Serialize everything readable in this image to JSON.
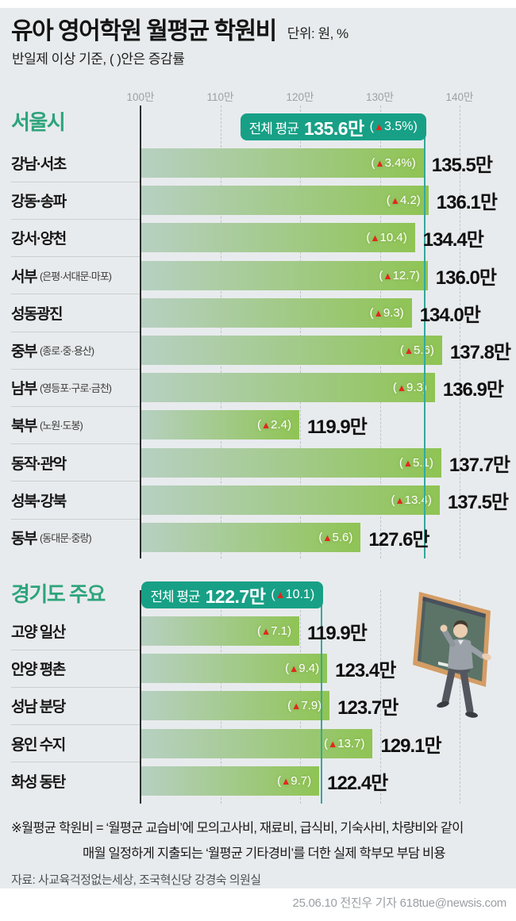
{
  "header": {
    "title": "유아 영어학원 월평균 학원비",
    "unit": "단위:  원, %",
    "subtitle": "반일제 이상 기준, ( )안은 증감률"
  },
  "axis": {
    "tick_labels": [
      "100만",
      "110만",
      "120만",
      "130만",
      "140만"
    ],
    "tick_values": [
      100,
      110,
      120,
      130,
      140
    ]
  },
  "colors": {
    "background": "#e8ebed",
    "header_green": "#2ea47c",
    "badge_teal": "#17a086",
    "avg_line_teal": "#33a89d",
    "bar_left": "#b7d0c2",
    "bar_right": "#8fc454",
    "triangle_red": "#e3261d"
  },
  "sections": [
    {
      "name": "서울시",
      "average": 135.6,
      "average_badge": {
        "label": "전체 평균",
        "value": "135.6만",
        "pct": "(▲3.5%)"
      },
      "rows": [
        {
          "label": "강남·서초",
          "sub": "",
          "pct": "(▲3.4%)",
          "value_label": "135.5만",
          "value": 135.5
        },
        {
          "label": "강동·송파",
          "sub": "",
          "pct": "(▲4.2)",
          "value_label": "136.1만",
          "value": 136.1
        },
        {
          "label": "강서·양천",
          "sub": "",
          "pct": "(▲10.4)",
          "value_label": "134.4만",
          "value": 134.4
        },
        {
          "label": "서부",
          "sub": "(은평·서대문·마포)",
          "pct": "(▲12.7)",
          "value_label": "136.0만",
          "value": 136.0
        },
        {
          "label": "성동광진",
          "sub": "",
          "pct": "(▲9.3)",
          "value_label": "134.0만",
          "value": 134.0
        },
        {
          "label": "중부",
          "sub": "(종로·중·용산)",
          "pct": "(▲5.6)",
          "value_label": "137.8만",
          "value": 137.8
        },
        {
          "label": "남부",
          "sub": "(영등포·구로·금천)",
          "pct": "(▲9.3)",
          "value_label": "136.9만",
          "value": 136.9
        },
        {
          "label": "북부",
          "sub": "(노원·도봉)",
          "pct": "(▲2.4)",
          "value_label": "119.9만",
          "value": 119.9
        },
        {
          "label": "동작·관악",
          "sub": "",
          "pct": "(▲5.1)",
          "value_label": "137.7만",
          "value": 137.7
        },
        {
          "label": "성북·강북",
          "sub": "",
          "pct": "(▲13.4)",
          "value_label": "137.5만",
          "value": 137.5
        },
        {
          "label": "동부",
          "sub": "(동대문·중랑)",
          "pct": "(▲5.6)",
          "value_label": "127.6만",
          "value": 127.6
        }
      ]
    },
    {
      "name": "경기도 주요",
      "average": 122.7,
      "average_badge": {
        "label": "전체 평균",
        "value": "122.7만",
        "pct": "(▲10.1)"
      },
      "rows": [
        {
          "label": "고양 일산",
          "sub": "",
          "pct": "(▲7.1)",
          "value_label": "119.9만",
          "value": 119.9
        },
        {
          "label": "안양 평촌",
          "sub": "",
          "pct": "(▲9.4)",
          "value_label": "123.4만",
          "value": 123.4
        },
        {
          "label": "성남 분당",
          "sub": "",
          "pct": "(▲7.9)",
          "value_label": "123.7만",
          "value": 123.7
        },
        {
          "label": "용인 수지",
          "sub": "",
          "pct": "(▲13.7)",
          "value_label": "129.1만",
          "value": 129.1
        },
        {
          "label": "화성 동탄",
          "sub": "",
          "pct": "(▲9.7)",
          "value_label": "122.4만",
          "value": 122.4
        }
      ]
    }
  ],
  "footnote": {
    "line1": "※월평균 학원비 = ‘월평균 교습비’에 모의고사비, 재료비, 급식비, 기숙사비, 차량비와 같이",
    "line2": "매월 일정하게 지출되는 ‘월평균 기타경비’를 더한 실제 학부모 부담 비용"
  },
  "source": "자료:  사교육걱정없는세상, 조국혁신당 강경숙 의원실",
  "credit": "25.06.10 전진우 기자 618tue@newsis.com",
  "chart_data": [
    {
      "type": "bar",
      "title": "서울시 유아 영어학원 월평균 학원비",
      "orientation": "horizontal",
      "unit": "만원",
      "categories": [
        "강남·서초",
        "강동·송파",
        "강서·양천",
        "서부(은평·서대문·마포)",
        "성동광진",
        "중부(종로·중·용산)",
        "남부(영등포·구로·금천)",
        "북부(노원·도봉)",
        "동작·관악",
        "성북·강북",
        "동부(동대문·중랑)"
      ],
      "values": [
        135.5,
        136.1,
        134.4,
        136.0,
        134.0,
        137.8,
        136.9,
        119.9,
        137.7,
        137.5,
        127.6
      ],
      "pct_change": [
        3.4,
        4.2,
        10.4,
        12.7,
        9.3,
        5.6,
        9.3,
        2.4,
        5.1,
        13.4,
        5.6
      ],
      "overall_average": 135.6,
      "overall_pct_change": 3.5,
      "xlim": [
        100,
        140
      ],
      "xticks": [
        "100만",
        "110만",
        "120만",
        "130만",
        "140만"
      ],
      "grid": true,
      "legend": false
    },
    {
      "type": "bar",
      "title": "경기도 주요 지역 유아 영어학원 월평균 학원비",
      "orientation": "horizontal",
      "unit": "만원",
      "categories": [
        "고양 일산",
        "안양 평촌",
        "성남 분당",
        "용인 수지",
        "화성 동탄"
      ],
      "values": [
        119.9,
        123.4,
        123.7,
        129.1,
        122.4
      ],
      "pct_change": [
        7.1,
        9.4,
        7.9,
        13.7,
        9.7
      ],
      "overall_average": 122.7,
      "overall_pct_change": 10.1,
      "xlim": [
        100,
        140
      ],
      "xticks": [
        "100만",
        "110만",
        "120만",
        "130만",
        "140만"
      ],
      "grid": true,
      "legend": false
    }
  ]
}
